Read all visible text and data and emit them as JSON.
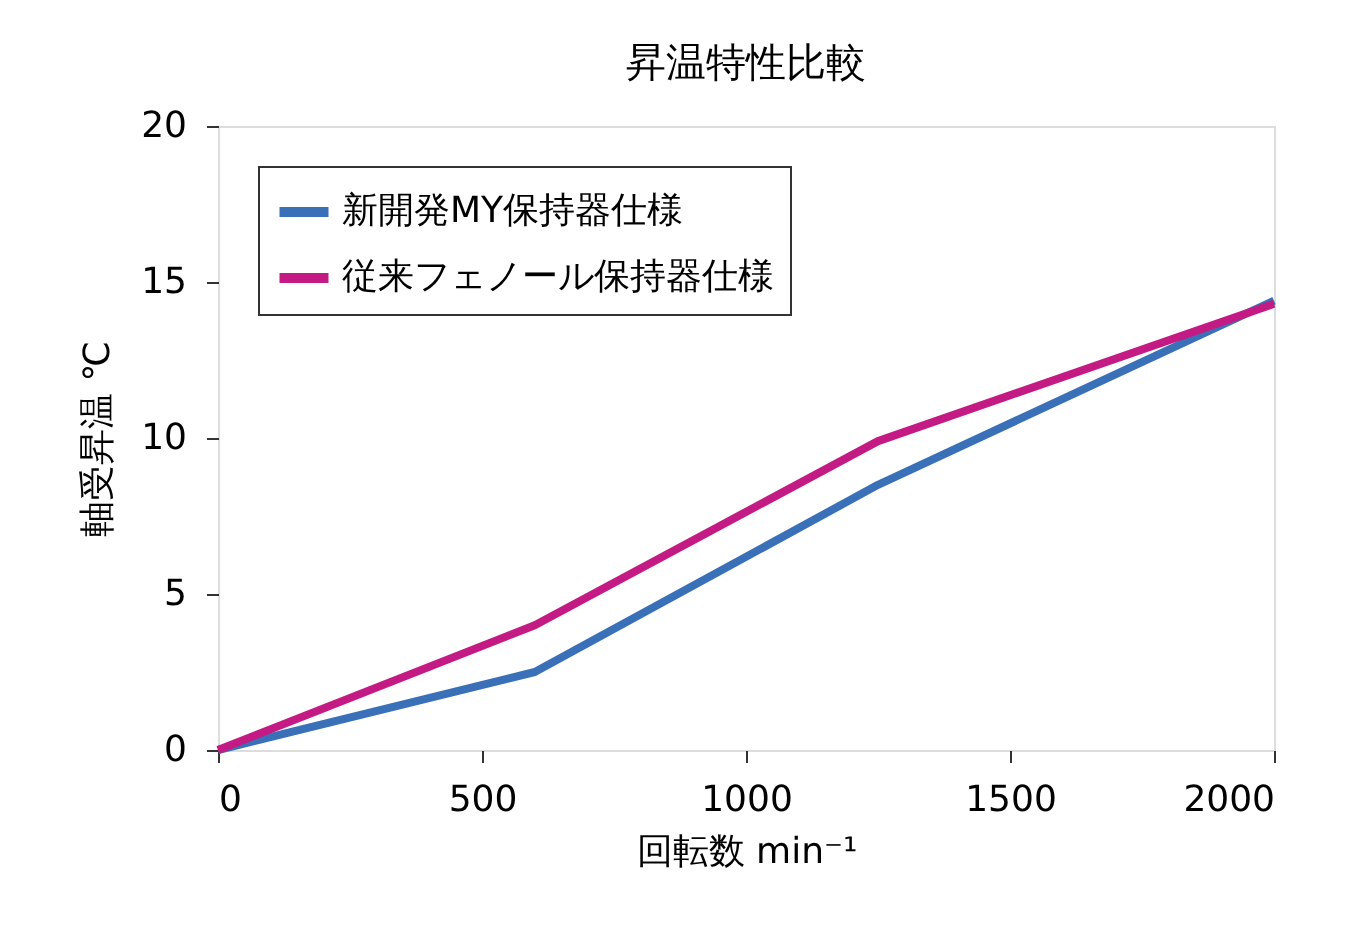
{
  "chart_data": {
    "type": "line",
    "title": "昇温特性比較",
    "xlabel": "回転数 min⁻¹",
    "ylabel": "軸受昇温 ℃",
    "x": [
      0,
      600,
      1250,
      2000
    ],
    "series": [
      {
        "name": "新開発MY保持器仕様",
        "color": "#3a70b8",
        "values": [
          0,
          2.5,
          8.5,
          14.4
        ]
      },
      {
        "name": "従来フェノール保持器仕様",
        "color": "#c41a84",
        "values": [
          0,
          4.0,
          9.9,
          14.3
        ]
      }
    ],
    "xlim": [
      0,
      2000
    ],
    "xticks": [
      0,
      500,
      1000,
      1500,
      2000
    ],
    "ylim": [
      0,
      20
    ],
    "yticks": [
      0,
      5,
      10,
      15,
      20
    ],
    "grid": false,
    "legend": "top left",
    "marker": "none",
    "line_style": "solid"
  }
}
